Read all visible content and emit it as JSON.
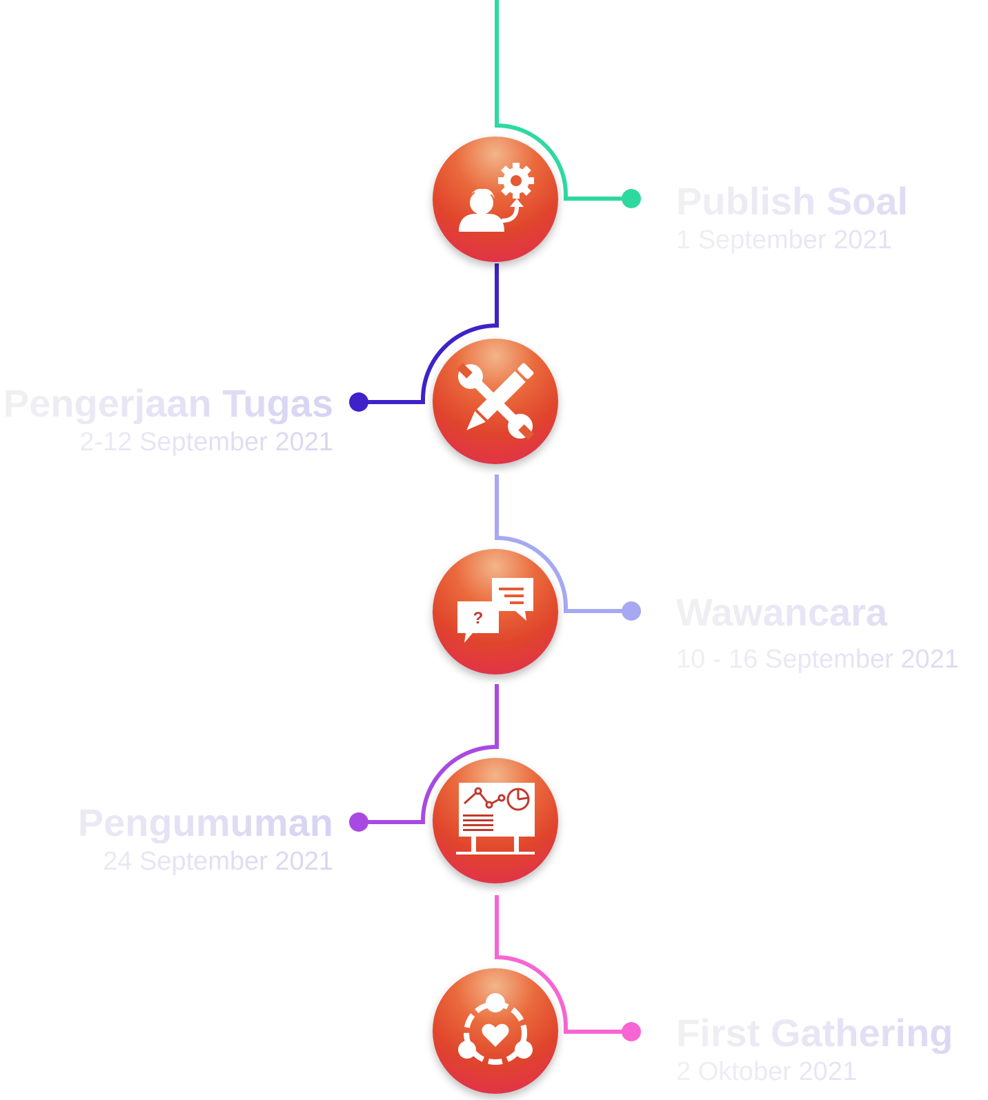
{
  "milestones": [
    {
      "title": "Publish Soal",
      "date": "1 September 2021",
      "icon": "person-gear-icon",
      "color": "#2ed9a0"
    },
    {
      "title": "Pengerjaan Tugas",
      "date": "2-12 September 2021",
      "icon": "pencil-wrench-icon",
      "color": "#3f22c8"
    },
    {
      "title": "Wawancara",
      "date": "10 - 16 September 2021",
      "icon": "chat-question-icon",
      "color": "#a6a8f2"
    },
    {
      "title": "Pengumuman",
      "date": "24 September 2021",
      "icon": "presentation-board-icon",
      "color": "#a84ae2"
    },
    {
      "title": "First Gathering",
      "date": "2 Oktober 2021",
      "icon": "community-heart-icon",
      "color": "#f765d2"
    }
  ]
}
